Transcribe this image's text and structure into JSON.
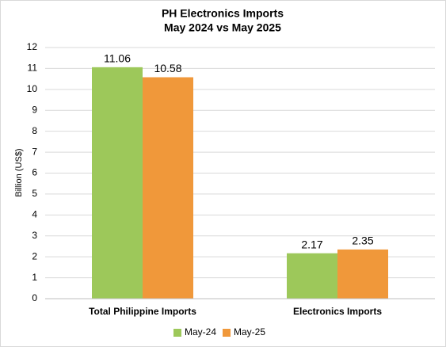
{
  "chart_data": {
    "type": "bar",
    "title": "PH Electronics Imports",
    "subtitle": "May 2024 vs May 2025",
    "y_label": "Billion (US$)",
    "categories": [
      "Total Philippine Imports",
      "Electronics Imports"
    ],
    "series": [
      {
        "name": "May-24",
        "color": "#9dc85a",
        "values": [
          11.06,
          2.17
        ]
      },
      {
        "name": "May-25",
        "color": "#f0983a",
        "values": [
          10.58,
          2.35
        ]
      }
    ],
    "ylim": [
      0,
      12
    ],
    "yticks": [
      0,
      1,
      2,
      3,
      4,
      5,
      6,
      7,
      8,
      9,
      10,
      11,
      12
    ],
    "grid": true,
    "legend": "bottom"
  }
}
